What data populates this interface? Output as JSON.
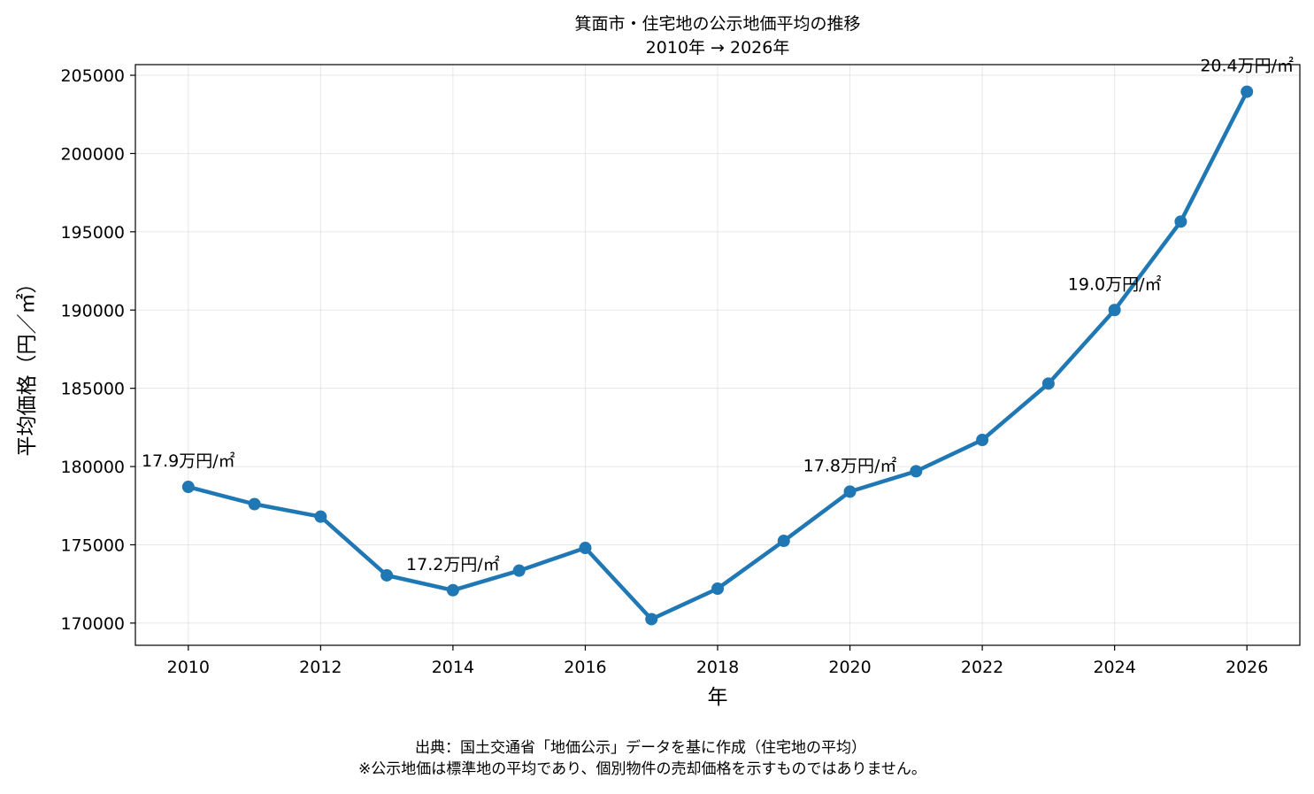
{
  "chart_data": {
    "type": "line",
    "title": "箕面市・住宅地の公示地価平均の推移",
    "subtitle": "2010年 → 2026年",
    "xlabel": "年",
    "ylabel": "平均価格（円／㎡）",
    "x": [
      2010,
      2011,
      2012,
      2013,
      2014,
      2015,
      2016,
      2017,
      2018,
      2019,
      2020,
      2021,
      2022,
      2023,
      2024,
      2025,
      2026
    ],
    "values": [
      178700,
      177600,
      176800,
      173050,
      172100,
      173350,
      174800,
      170250,
      172200,
      175250,
      178400,
      179700,
      181700,
      185300,
      190000,
      195650,
      203950
    ],
    "x_ticks": [
      "2010",
      "2012",
      "2014",
      "2016",
      "2018",
      "2020",
      "2022",
      "2024",
      "2026"
    ],
    "y_ticks": [
      "170000",
      "175000",
      "180000",
      "185000",
      "190000",
      "195000",
      "200000",
      "205000"
    ],
    "xlim": [
      2009.2,
      2026.8
    ],
    "ylim": [
      168580,
      205680
    ],
    "grid": true,
    "line_color": "#1f77b4",
    "annotations": [
      {
        "x": 2010,
        "text": "17.9万円/㎡"
      },
      {
        "x": 2014,
        "text": "17.2万円/㎡"
      },
      {
        "x": 2020,
        "text": "17.8万円/㎡"
      },
      {
        "x": 2024,
        "text": "19.0万円/㎡"
      },
      {
        "x": 2026,
        "text": "20.4万円/㎡"
      }
    ]
  },
  "footer": {
    "source": "出典：国土交通省「地価公示」データを基に作成（住宅地の平均）",
    "note": "※公示地価は標準地の平均であり、個別物件の売却価格を示すものではありません。"
  }
}
